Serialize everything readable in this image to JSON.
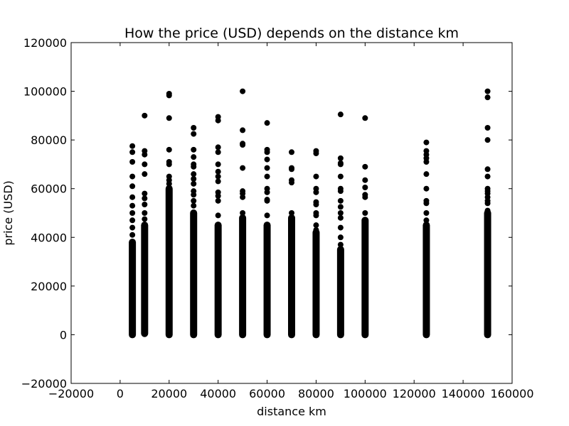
{
  "chart_data": {
    "type": "scatter",
    "title": "How the price (USD) depends on the distance km",
    "xlabel": "distance km",
    "ylabel": "price (USD)",
    "xlim": [
      -20000,
      160000
    ],
    "ylim": [
      -20000,
      120000
    ],
    "x_ticks": [
      "−20000",
      "0",
      "20000",
      "40000",
      "60000",
      "80000",
      "100000",
      "120000",
      "140000",
      "160000"
    ],
    "y_ticks": [
      "−20000",
      "0",
      "20000",
      "40000",
      "60000",
      "80000",
      "100000",
      "120000"
    ],
    "grid": false,
    "legend": "none",
    "marker_color": "#000000",
    "dense_ranges": [
      {
        "x": 5000,
        "min": 0,
        "max": 38000
      },
      {
        "x": 10000,
        "min": 500,
        "max": 45000
      },
      {
        "x": 20000,
        "min": 0,
        "max": 60000
      },
      {
        "x": 30000,
        "min": 0,
        "max": 50000
      },
      {
        "x": 40000,
        "min": 0,
        "max": 45000
      },
      {
        "x": 50000,
        "min": 0,
        "max": 48000
      },
      {
        "x": 60000,
        "min": 0,
        "max": 45000
      },
      {
        "x": 70000,
        "min": 0,
        "max": 48000
      },
      {
        "x": 80000,
        "min": 0,
        "max": 42000
      },
      {
        "x": 90000,
        "min": 0,
        "max": 35000
      },
      {
        "x": 100000,
        "min": 0,
        "max": 47000
      },
      {
        "x": 125000,
        "min": 0,
        "max": 45000
      },
      {
        "x": 150000,
        "min": 0,
        "max": 50000
      }
    ],
    "points": [
      {
        "x": 5000,
        "y": 77500
      },
      {
        "x": 5000,
        "y": 75000
      },
      {
        "x": 5000,
        "y": 71000
      },
      {
        "x": 5000,
        "y": 65000
      },
      {
        "x": 5000,
        "y": 61000
      },
      {
        "x": 5000,
        "y": 56500
      },
      {
        "x": 5000,
        "y": 53000
      },
      {
        "x": 5000,
        "y": 50000
      },
      {
        "x": 5000,
        "y": 47000
      },
      {
        "x": 5000,
        "y": 44000
      },
      {
        "x": 5000,
        "y": 41000
      },
      {
        "x": 10000,
        "y": 90000
      },
      {
        "x": 10000,
        "y": 75500
      },
      {
        "x": 10000,
        "y": 74000
      },
      {
        "x": 10000,
        "y": 70000
      },
      {
        "x": 10000,
        "y": 66000
      },
      {
        "x": 10000,
        "y": 58000
      },
      {
        "x": 10000,
        "y": 56000
      },
      {
        "x": 10000,
        "y": 53500
      },
      {
        "x": 10000,
        "y": 50000
      },
      {
        "x": 10000,
        "y": 47500
      },
      {
        "x": 20000,
        "y": 99000
      },
      {
        "x": 20000,
        "y": 98300
      },
      {
        "x": 20000,
        "y": 89000
      },
      {
        "x": 20000,
        "y": 76000
      },
      {
        "x": 20000,
        "y": 71000
      },
      {
        "x": 20000,
        "y": 70000
      },
      {
        "x": 20000,
        "y": 65000
      },
      {
        "x": 20000,
        "y": 63500
      },
      {
        "x": 20000,
        "y": 62000
      },
      {
        "x": 30000,
        "y": 85000
      },
      {
        "x": 30000,
        "y": 82500
      },
      {
        "x": 30000,
        "y": 76000
      },
      {
        "x": 30000,
        "y": 73000
      },
      {
        "x": 30000,
        "y": 70000
      },
      {
        "x": 30000,
        "y": 69000
      },
      {
        "x": 30000,
        "y": 66000
      },
      {
        "x": 30000,
        "y": 64000
      },
      {
        "x": 30000,
        "y": 62000
      },
      {
        "x": 30000,
        "y": 59000
      },
      {
        "x": 30000,
        "y": 57500
      },
      {
        "x": 30000,
        "y": 55000
      },
      {
        "x": 30000,
        "y": 53000
      },
      {
        "x": 40000,
        "y": 89500
      },
      {
        "x": 40000,
        "y": 88000
      },
      {
        "x": 40000,
        "y": 77000
      },
      {
        "x": 40000,
        "y": 75000
      },
      {
        "x": 40000,
        "y": 70000
      },
      {
        "x": 40000,
        "y": 67000
      },
      {
        "x": 40000,
        "y": 65000
      },
      {
        "x": 40000,
        "y": 63000
      },
      {
        "x": 40000,
        "y": 58500
      },
      {
        "x": 40000,
        "y": 57000
      },
      {
        "x": 40000,
        "y": 55000
      },
      {
        "x": 40000,
        "y": 49000
      },
      {
        "x": 50000,
        "y": 100000
      },
      {
        "x": 50000,
        "y": 84000
      },
      {
        "x": 50000,
        "y": 78500
      },
      {
        "x": 50000,
        "y": 78000
      },
      {
        "x": 50000,
        "y": 68500
      },
      {
        "x": 50000,
        "y": 59000
      },
      {
        "x": 50000,
        "y": 58000
      },
      {
        "x": 50000,
        "y": 56500
      },
      {
        "x": 50000,
        "y": 50000
      },
      {
        "x": 60000,
        "y": 87000
      },
      {
        "x": 60000,
        "y": 76000
      },
      {
        "x": 60000,
        "y": 75000
      },
      {
        "x": 60000,
        "y": 72000
      },
      {
        "x": 60000,
        "y": 68500
      },
      {
        "x": 60000,
        "y": 65000
      },
      {
        "x": 60000,
        "y": 60000
      },
      {
        "x": 60000,
        "y": 58500
      },
      {
        "x": 60000,
        "y": 55500
      },
      {
        "x": 60000,
        "y": 55000
      },
      {
        "x": 60000,
        "y": 49000
      },
      {
        "x": 70000,
        "y": 75000
      },
      {
        "x": 70000,
        "y": 68500
      },
      {
        "x": 70000,
        "y": 68000
      },
      {
        "x": 70000,
        "y": 63500
      },
      {
        "x": 70000,
        "y": 62500
      },
      {
        "x": 70000,
        "y": 50000
      },
      {
        "x": 80000,
        "y": 75500
      },
      {
        "x": 80000,
        "y": 74500
      },
      {
        "x": 80000,
        "y": 65000
      },
      {
        "x": 80000,
        "y": 60000
      },
      {
        "x": 80000,
        "y": 58500
      },
      {
        "x": 80000,
        "y": 54500
      },
      {
        "x": 80000,
        "y": 53500
      },
      {
        "x": 80000,
        "y": 50000
      },
      {
        "x": 80000,
        "y": 49000
      },
      {
        "x": 80000,
        "y": 45000
      },
      {
        "x": 80000,
        "y": 43000
      },
      {
        "x": 90000,
        "y": 90500
      },
      {
        "x": 90000,
        "y": 72500
      },
      {
        "x": 90000,
        "y": 70500
      },
      {
        "x": 90000,
        "y": 70000
      },
      {
        "x": 90000,
        "y": 65000
      },
      {
        "x": 90000,
        "y": 60000
      },
      {
        "x": 90000,
        "y": 59000
      },
      {
        "x": 90000,
        "y": 55000
      },
      {
        "x": 90000,
        "y": 52500
      },
      {
        "x": 90000,
        "y": 50000
      },
      {
        "x": 90000,
        "y": 48000
      },
      {
        "x": 90000,
        "y": 44000
      },
      {
        "x": 90000,
        "y": 40000
      },
      {
        "x": 90000,
        "y": 37000
      },
      {
        "x": 100000,
        "y": 89000
      },
      {
        "x": 100000,
        "y": 69000
      },
      {
        "x": 100000,
        "y": 63500
      },
      {
        "x": 100000,
        "y": 60500
      },
      {
        "x": 100000,
        "y": 57500
      },
      {
        "x": 100000,
        "y": 56500
      },
      {
        "x": 100000,
        "y": 50000
      },
      {
        "x": 125000,
        "y": 79000
      },
      {
        "x": 125000,
        "y": 75500
      },
      {
        "x": 125000,
        "y": 74000
      },
      {
        "x": 125000,
        "y": 72500
      },
      {
        "x": 125000,
        "y": 71000
      },
      {
        "x": 125000,
        "y": 66000
      },
      {
        "x": 125000,
        "y": 60000
      },
      {
        "x": 125000,
        "y": 55000
      },
      {
        "x": 125000,
        "y": 54000
      },
      {
        "x": 125000,
        "y": 50000
      },
      {
        "x": 125000,
        "y": 47000
      },
      {
        "x": 150000,
        "y": 100000
      },
      {
        "x": 150000,
        "y": 97500
      },
      {
        "x": 150000,
        "y": 85000
      },
      {
        "x": 150000,
        "y": 80000
      },
      {
        "x": 150000,
        "y": 68000
      },
      {
        "x": 150000,
        "y": 65000
      },
      {
        "x": 150000,
        "y": 60000
      },
      {
        "x": 150000,
        "y": 59000
      },
      {
        "x": 150000,
        "y": 58000
      },
      {
        "x": 150000,
        "y": 56500
      },
      {
        "x": 150000,
        "y": 55000
      },
      {
        "x": 150000,
        "y": 54000
      },
      {
        "x": 150000,
        "y": 51000
      }
    ]
  }
}
